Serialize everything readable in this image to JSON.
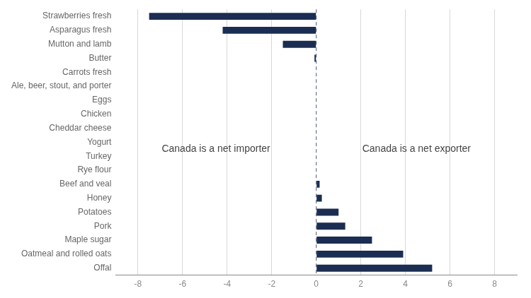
{
  "chart_data": {
    "type": "bar",
    "orientation": "horizontal",
    "categories": [
      "Strawberries fresh",
      "Asparagus fresh",
      "Mutton and lamb",
      "Butter",
      "Carrots fresh",
      "Ale, beer, stout, and porter",
      "Eggs",
      "Chicken",
      "Cheddar cheese",
      "Yogurt",
      "Turkey",
      "Rye flour",
      "Beef and veal",
      "Honey",
      "Potatoes",
      "Pork",
      "Maple sugar",
      "Oatmeal and rolled oats",
      "Offal"
    ],
    "values": [
      -7.5,
      -4.2,
      -1.5,
      -0.08,
      0.0,
      0.0,
      0.0,
      0.0,
      0.0,
      0.0,
      0.0,
      0.0,
      0.15,
      0.25,
      1.0,
      1.3,
      2.5,
      3.9,
      5.2
    ],
    "color": "#1b2d52",
    "xlim": [
      -9,
      9
    ],
    "xticks": [
      -8,
      -6,
      -4,
      -2,
      0,
      2,
      4,
      6,
      8
    ],
    "grid": true,
    "annotations": [
      "Canada is a net importer",
      "Canada is a net exporter"
    ]
  }
}
